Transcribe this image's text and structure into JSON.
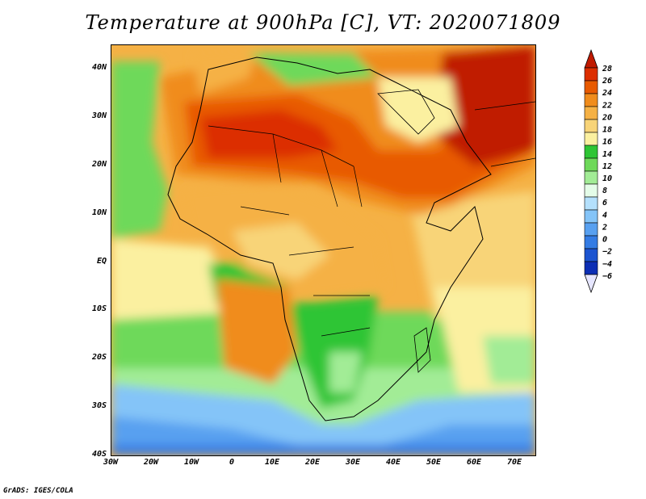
{
  "title": "Temperature at 900hPa [C], VT: 2020071809",
  "footer": "GrADS: IGES/COLA",
  "map": {
    "lon_labels": [
      "30W",
      "20W",
      "10W",
      "0",
      "10E",
      "20E",
      "30E",
      "40E",
      "50E",
      "60E",
      "70E"
    ],
    "lat_labels": [
      "40N",
      "30N",
      "20N",
      "10N",
      "EQ",
      "10S",
      "20S",
      "30S",
      "40S"
    ]
  },
  "colorbar": {
    "labels": [
      "28",
      "26",
      "24",
      "22",
      "20",
      "18",
      "16",
      "14",
      "12",
      "10",
      "8",
      "6",
      "4",
      "2",
      "0",
      "−2",
      "−4",
      "−6"
    ],
    "colors": [
      "#c01a00",
      "#dc2e00",
      "#e85a00",
      "#f08c1c",
      "#f5b145",
      "#f8d478",
      "#fbf0a0",
      "#2ec534",
      "#6ed95a",
      "#a2ec96",
      "#e4fce8",
      "#b4e0fc",
      "#84c4f8",
      "#58a0f0",
      "#347ce4",
      "#1c54d0",
      "#0c2eb4",
      "#0a1480"
    ]
  }
}
